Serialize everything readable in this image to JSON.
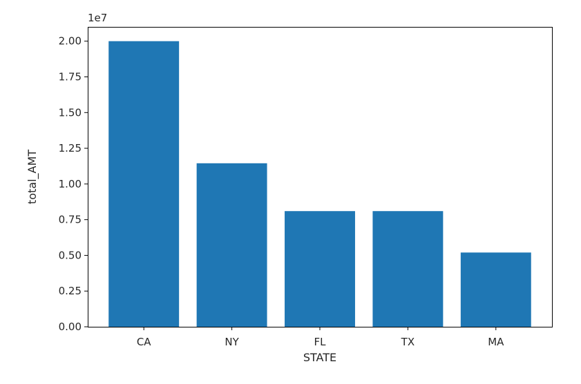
{
  "chart_data": {
    "type": "bar",
    "categories": [
      "CA",
      "NY",
      "FL",
      "TX",
      "MA"
    ],
    "values": [
      20000000,
      11450000,
      8100000,
      8100000,
      5200000
    ],
    "xlabel": "STATE",
    "ylabel": "total_AMT",
    "ylim": [
      0,
      21000000
    ],
    "y_offset_label": "1e7",
    "y_ticks": [
      0,
      2500000,
      5000000,
      7500000,
      10000000,
      12500000,
      15000000,
      17500000,
      20000000
    ],
    "y_tick_labels": [
      "0.00",
      "0.25",
      "0.50",
      "0.75",
      "1.00",
      "1.25",
      "1.50",
      "1.75",
      "2.00"
    ],
    "bar_color": "#1f77b4",
    "grid": false,
    "legend": "none"
  }
}
